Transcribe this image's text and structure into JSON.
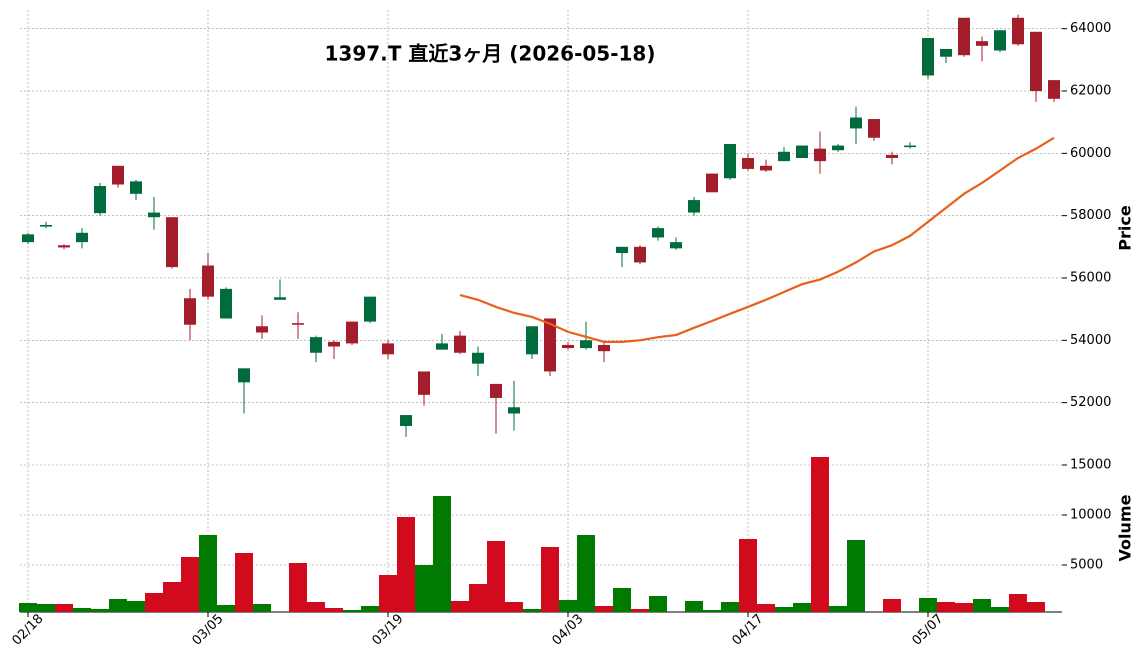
{
  "chart_data": [
    {
      "type": "candlestick",
      "title": "1397.T  直近3ヶ月  (2026-05-18)",
      "y_label": "Price",
      "categories": [
        "02/18",
        null,
        null,
        null,
        null,
        null,
        null,
        null,
        null,
        null,
        "03/05",
        null,
        null,
        null,
        null,
        null,
        null,
        null,
        null,
        null,
        "03/19",
        null,
        null,
        null,
        null,
        null,
        null,
        null,
        null,
        null,
        "04/03",
        null,
        null,
        null,
        null,
        null,
        null,
        null,
        null,
        null,
        "04/17",
        null,
        null,
        null,
        null,
        null,
        null,
        null,
        null,
        null,
        "05/07",
        null,
        null,
        null,
        null,
        null,
        null,
        null
      ],
      "open": [
        57150,
        57650,
        57050,
        57150,
        58080,
        59600,
        58700,
        57950,
        57950,
        55350,
        56400,
        54700,
        52650,
        54450,
        55300,
        54550,
        53600,
        53950,
        54600,
        54600,
        53900,
        51250,
        53000,
        53700,
        54150,
        53250,
        52600,
        51650,
        53550,
        54700,
        53850,
        53750,
        53850,
        56800,
        57000,
        57300,
        56950,
        58100,
        59350,
        59200,
        59850,
        59600,
        59750,
        59850,
        60150,
        60100,
        60800,
        61100,
        59950,
        60200,
        62500,
        63100,
        64350,
        63600,
        63300,
        64350,
        63900,
        62350
      ],
      "high": [
        57450,
        57800,
        57080,
        57600,
        59050,
        59600,
        59150,
        58600,
        57950,
        55650,
        56800,
        55700,
        53100,
        54800,
        55950,
        54900,
        54150,
        54000,
        54600,
        55400,
        54000,
        51600,
        53000,
        54200,
        54300,
        53800,
        52600,
        52700,
        54450,
        54700,
        53950,
        54600,
        53950,
        57000,
        57050,
        57650,
        57300,
        58600,
        59350,
        60300,
        60000,
        59800,
        60200,
        60250,
        60700,
        60300,
        61500,
        61100,
        60050,
        60350,
        63700,
        63350,
        64350,
        63750,
        63950,
        64450,
        63900,
        62350
      ],
      "low": [
        57100,
        57600,
        56920,
        56950,
        58000,
        58900,
        58500,
        57550,
        56300,
        54000,
        55300,
        54700,
        51650,
        54050,
        55300,
        54050,
        53300,
        53400,
        53850,
        54550,
        53400,
        50900,
        51900,
        53700,
        53550,
        52850,
        51000,
        51100,
        53400,
        52850,
        53700,
        53700,
        53300,
        56350,
        56450,
        57200,
        56900,
        58000,
        58750,
        59150,
        59450,
        59400,
        59750,
        59850,
        59350,
        60050,
        60300,
        60400,
        59650,
        60150,
        62400,
        62900,
        63100,
        62950,
        63250,
        63450,
        61650,
        61650
      ],
      "close": [
        57400,
        57700,
        56980,
        57450,
        58950,
        59000,
        59100,
        58100,
        56350,
        54500,
        55400,
        55650,
        53100,
        54250,
        55380,
        54500,
        54100,
        53800,
        53900,
        55400,
        53550,
        51600,
        52250,
        53900,
        53600,
        53600,
        52150,
        51850,
        54450,
        53000,
        53750,
        54000,
        53650,
        57000,
        56500,
        57600,
        57150,
        58500,
        58750,
        60300,
        59500,
        59450,
        60050,
        60250,
        59750,
        60250,
        61150,
        60500,
        59850,
        60250,
        63700,
        63350,
        63150,
        63450,
        63950,
        63500,
        62000,
        61750
      ],
      "up_color": "#006b3d",
      "down_color": "#a31d2a",
      "series": [
        {
          "type": "line",
          "color": "#e8601c",
          "values": [
            null,
            null,
            null,
            null,
            null,
            null,
            null,
            null,
            null,
            null,
            null,
            null,
            null,
            null,
            null,
            null,
            null,
            null,
            null,
            null,
            null,
            null,
            null,
            null,
            55450,
            55300,
            55070,
            54880,
            54750,
            54530,
            54270,
            54110,
            53950,
            53950,
            54000,
            54100,
            54170,
            54400,
            54620,
            54850,
            55070,
            55300,
            55550,
            55800,
            55950,
            56200,
            56500,
            56850,
            57050,
            57350,
            57800,
            58250,
            58700,
            59050,
            59450,
            59850,
            60150,
            60500
          ]
        }
      ],
      "ylim": [
        50800,
        64600
      ],
      "yticks": [
        52000,
        54000,
        56000,
        58000,
        60000,
        62000,
        64000
      ],
      "grid": true
    },
    {
      "type": "bar",
      "y_label": "Volume",
      "values": [
        1200,
        1100,
        1100,
        700,
        600,
        1600,
        1400,
        2200,
        3300,
        5800,
        8000,
        1000,
        6200,
        1100,
        300,
        5200,
        1300,
        700,
        500,
        900,
        4000,
        9800,
        5000,
        11900,
        1400,
        3100,
        7400,
        1300,
        600,
        6800,
        1500,
        8000,
        900,
        2700,
        600,
        1900,
        300,
        1400,
        500,
        1300,
        7600,
        1100,
        800,
        1200,
        15800,
        900,
        7500,
        300,
        1600,
        300,
        1700,
        1300,
        1200,
        1600,
        800,
        2100,
        1300,
        300
      ],
      "colors": [
        "#007a00",
        "#007a00",
        "#d20a1e",
        "#007a00",
        "#007a00",
        "#007a00",
        "#007a00",
        "#d20a1e",
        "#d20a1e",
        "#d20a1e",
        "#007a00",
        "#007a00",
        "#d20a1e",
        "#007a00",
        "#d20a1e",
        "#d20a1e",
        "#d20a1e",
        "#d20a1e",
        "#007a00",
        "#007a00",
        "#d20a1e",
        "#d20a1e",
        "#007a00",
        "#007a00",
        "#d20a1e",
        "#d20a1e",
        "#d20a1e",
        "#d20a1e",
        "#007a00",
        "#d20a1e",
        "#007a00",
        "#007a00",
        "#d20a1e",
        "#007a00",
        "#d20a1e",
        "#007a00",
        "#007a00",
        "#007a00",
        "#007a00",
        "#007a00",
        "#d20a1e",
        "#d20a1e",
        "#007a00",
        "#007a00",
        "#d20a1e",
        "#007a00",
        "#007a00",
        "#d20a1e",
        "#d20a1e",
        "#007a00",
        "#007a00",
        "#d20a1e",
        "#d20a1e",
        "#007a00",
        "#007a00",
        "#d20a1e",
        "#d20a1e",
        "#d20a1e"
      ],
      "ylim": [
        300,
        16800
      ],
      "yticks": [
        5000,
        10000,
        15000
      ],
      "grid": true
    }
  ]
}
